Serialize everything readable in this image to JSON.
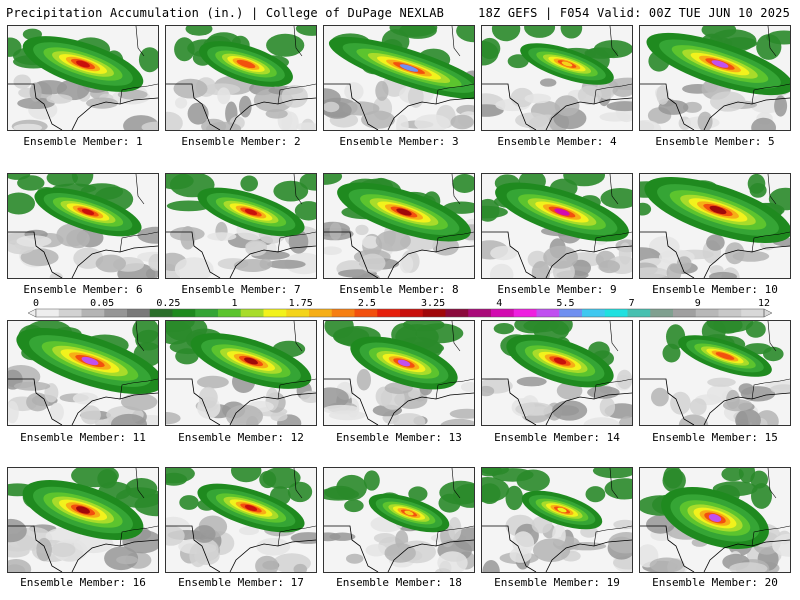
{
  "header": {
    "left": "Precipitation Accumulation (in.) | College of DuPage NEXLAB",
    "right": "18Z GEFS | F054 Valid: 00Z TUE JUN 10 2025"
  },
  "colorbar": {
    "tick_labels": [
      "0",
      "0.05",
      "0.25",
      "1",
      "1.75",
      "2.5",
      "3.25",
      "4",
      "5.5",
      "7",
      "9",
      "12"
    ],
    "colors": [
      "#eeeeee",
      "#d2d2d2",
      "#b4b4b4",
      "#969696",
      "#7a7a7a",
      "#2a6e2a",
      "#1f8a1f",
      "#35a535",
      "#5cc42e",
      "#a8dc2a",
      "#f2f21c",
      "#f4d41a",
      "#f6ae16",
      "#f67f12",
      "#f2500e",
      "#e6200c",
      "#c8100c",
      "#a0080a",
      "#8a0a3c",
      "#aa0a7a",
      "#d20ab0",
      "#ee20e0",
      "#c050f0",
      "#7090f0",
      "#40c8f0",
      "#20e0e0",
      "#48c0b0",
      "#80a090",
      "#a0a0a0",
      "#b8b8b8",
      "#c8c8c8",
      "#d8d8d8"
    ]
  },
  "members": [
    {
      "caption": "Ensemble Member: 1",
      "core": [
        45,
        38,
        0.9,
        0.7
      ],
      "max": "#c8100c"
    },
    {
      "caption": "Ensemble Member: 2",
      "core": [
        50,
        38,
        0.7,
        0.6
      ],
      "max": "#f2500e"
    },
    {
      "caption": "Ensemble Member: 3",
      "core": [
        55,
        42,
        1.2,
        0.6
      ],
      "max": "#7090f0"
    },
    {
      "caption": "Ensemble Member: 4",
      "core": [
        55,
        38,
        0.7,
        0.5
      ],
      "max": "#f4d41a"
    },
    {
      "caption": "Ensemble Member: 5",
      "core": [
        50,
        38,
        1.1,
        0.7
      ],
      "max": "#c050f0"
    },
    {
      "caption": "Ensemble Member: 6",
      "core": [
        50,
        38,
        0.8,
        0.6
      ],
      "max": "#c8100c"
    },
    {
      "caption": "Ensemble Member: 7",
      "core": [
        55,
        38,
        0.8,
        0.6
      ],
      "max": "#c8100c"
    },
    {
      "caption": "Ensemble Member: 8",
      "core": [
        50,
        38,
        1.0,
        0.7
      ],
      "max": "#a0080a"
    },
    {
      "caption": "Ensemble Member: 9",
      "core": [
        50,
        38,
        1.0,
        0.7
      ],
      "max": "#d20ab0"
    },
    {
      "caption": "Ensemble Member: 10",
      "core": [
        48,
        36,
        1.1,
        0.8
      ],
      "max": "#a0080a"
    },
    {
      "caption": "Ensemble Member: 11",
      "core": [
        52,
        40,
        1.1,
        0.8
      ],
      "max": "#c050f0"
    },
    {
      "caption": "Ensemble Member: 12",
      "core": [
        55,
        40,
        0.9,
        0.7
      ],
      "max": "#a0080a"
    },
    {
      "caption": "Ensemble Member: 13",
      "core": [
        50,
        42,
        0.8,
        0.7
      ],
      "max": "#c050f0"
    },
    {
      "caption": "Ensemble Member: 14",
      "core": [
        48,
        40,
        0.8,
        0.7
      ],
      "max": "#c8100c"
    },
    {
      "caption": "Ensemble Member: 15",
      "core": [
        55,
        35,
        0.7,
        0.5
      ],
      "max": "#f2500e"
    },
    {
      "caption": "Ensemble Member: 16",
      "core": [
        45,
        42,
        0.9,
        0.8
      ],
      "max": "#a0080a"
    },
    {
      "caption": "Ensemble Member: 17",
      "core": [
        55,
        40,
        0.8,
        0.6
      ],
      "max": "#c8100c"
    },
    {
      "caption": "Ensemble Member: 18",
      "core": [
        55,
        45,
        0.6,
        0.5
      ],
      "max": "#f4d41a"
    },
    {
      "caption": "Ensemble Member: 19",
      "core": [
        50,
        42,
        0.6,
        0.5
      ],
      "max": "#f2f21c"
    },
    {
      "caption": "Ensemble Member: 20",
      "core": [
        45,
        50,
        0.8,
        0.9
      ],
      "max": "#c050f0"
    }
  ]
}
